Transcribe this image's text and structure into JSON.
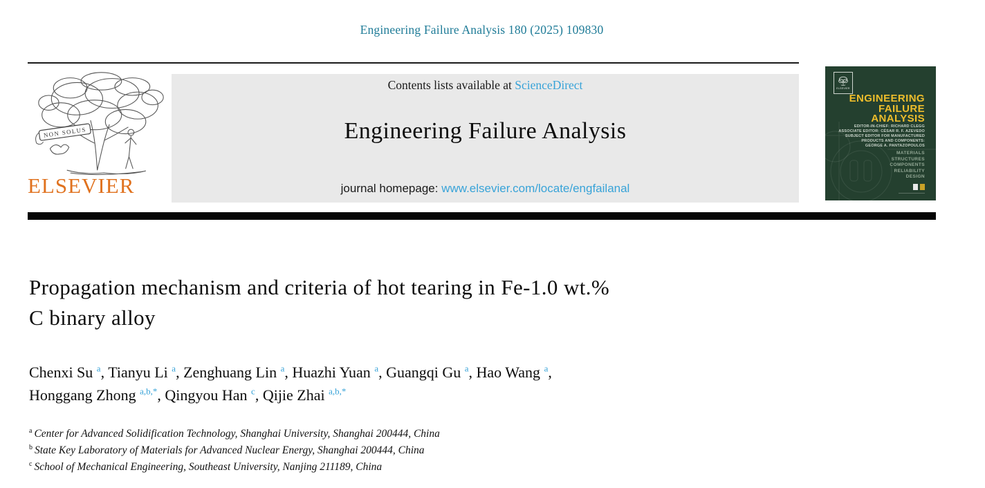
{
  "page": {
    "citation": "Engineering Failure Analysis 180 (2025) 109830"
  },
  "banner": {
    "contents_prefix": "Contents lists available at ",
    "sciencedirect_label": "ScienceDirect",
    "journal_title": "Engineering Failure Analysis",
    "homepage_prefix": "journal homepage: ",
    "homepage_url": "www.elsevier.com/locate/engfailanal"
  },
  "publisher": {
    "wordmark": "ELSEVIER",
    "motto": "NON SOLUS",
    "tree_icon": "elsevier-tree-icon"
  },
  "cover": {
    "mini_publisher": "ELSEVIER",
    "title_lines": [
      "ENGINEERING",
      "FAILURE",
      "ANALYSIS"
    ],
    "editor_lines": [
      "EDITOR-IN-CHIEF: RICHARD CLEGG",
      "ASSOCIATE EDITOR: CÉSAR R. F. AZEVEDO",
      "SUBJECT EDITOR FOR MANUFACTURED",
      "PRODUCTS AND COMPONENTS:",
      "GEORGE A. PANTAZOPOULOS"
    ],
    "keyword_lines": [
      "MATERIALS",
      "STRUCTURES",
      "COMPONENTS",
      "RELIABILITY",
      "DESIGN"
    ]
  },
  "article": {
    "title_line1": "Propagation mechanism and criteria of hot tearing in Fe-1.0 wt.%",
    "title_line2": "C binary alloy",
    "author_lines": [
      [
        {
          "name": "Chenxi Su",
          "sup": "a",
          "tail": ", "
        },
        {
          "name": "Tianyu Li",
          "sup": "a",
          "tail": ", "
        },
        {
          "name": "Zenghuang Lin",
          "sup": "a",
          "tail": ", "
        },
        {
          "name": "Huazhi Yuan",
          "sup": "a",
          "tail": ", "
        },
        {
          "name": "Guangqi Gu",
          "sup": "a",
          "tail": ", "
        },
        {
          "name": "Hao Wang",
          "sup": "a",
          "tail": ","
        }
      ],
      [
        {
          "name": "Honggang Zhong",
          "sup": "a,b,*",
          "tail": ", "
        },
        {
          "name": "Qingyou Han",
          "sup": "c",
          "tail": ", "
        },
        {
          "name": "Qijie Zhai",
          "sup": "a,b,*",
          "tail": ""
        }
      ]
    ],
    "affiliations": [
      {
        "sup": "a",
        "text": "Center for Advanced Solidification Technology, Shanghai University, Shanghai 200444, China"
      },
      {
        "sup": "b",
        "text": "State Key Laboratory of Materials for Advanced Nuclear Energy, Shanghai 200444, China"
      },
      {
        "sup": "c",
        "text": "School of Mechanical Engineering, Southeast University, Nanjing 211189, China"
      }
    ]
  },
  "colors": {
    "teal": "#1e7b97",
    "link_blue": "#38a3d8",
    "orange": "#e0721f",
    "banner_grey": "#e9e9e9",
    "cover_green": "#24402f",
    "cover_yellow": "#eebd2b"
  }
}
